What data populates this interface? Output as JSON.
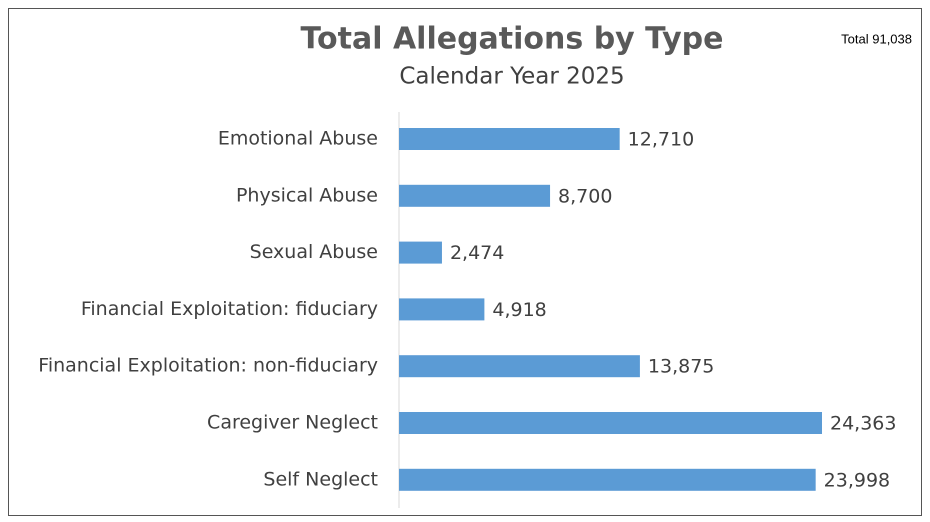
{
  "chart_data": {
    "type": "bar",
    "orientation": "horizontal",
    "title": "Total Allegations by Type",
    "subtitle": "Calendar Year 2025",
    "annotation": "Total 91,038",
    "categories": [
      "Emotional Abuse",
      "Physical Abuse",
      "Sexual Abuse",
      "Financial Exploitation: fiduciary",
      "Financial Exploitation: non-fiduciary",
      "Caregiver Neglect",
      "Self Neglect"
    ],
    "values": [
      12710,
      8700,
      2474,
      4918,
      13875,
      24363,
      23998
    ],
    "value_labels": [
      "12,710",
      "8,700",
      "2,474",
      "4,918",
      "13,875",
      "24,363",
      "23,998"
    ],
    "color": "#5b9bd5"
  }
}
